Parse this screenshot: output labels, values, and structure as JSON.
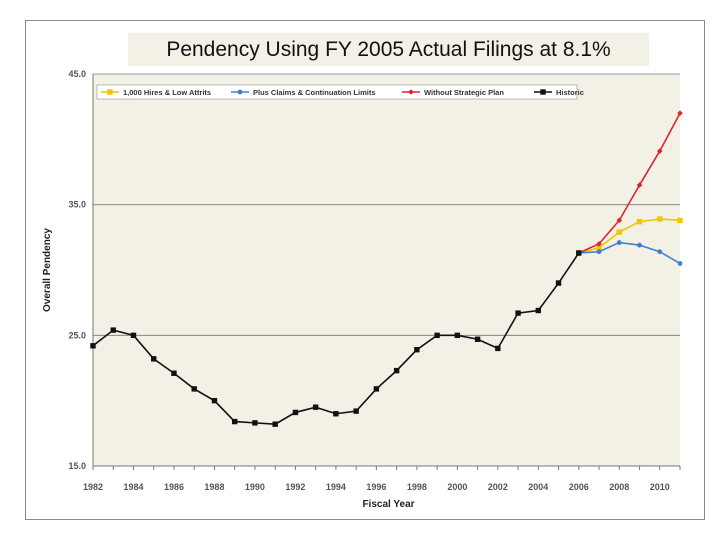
{
  "chart_data": {
    "type": "line",
    "title": "Pendency Using FY 2005 Actual Filings at 8.1%",
    "xlabel": "Fiscal Year",
    "ylabel": "Overall Pendency",
    "xlim": [
      1982,
      2011
    ],
    "ylim": [
      15,
      45
    ],
    "yticks": [
      "15.0",
      "25.0",
      "35.0",
      "45.0"
    ],
    "xticks": [
      "1982",
      "1984",
      "1986",
      "1988",
      "1990",
      "1992",
      "1994",
      "1996",
      "1998",
      "2000",
      "2002",
      "2004",
      "2006",
      "2008",
      "2010"
    ],
    "grid": "horizontal",
    "legend_position": "top",
    "series": [
      {
        "name": "1,000 Hires & Low Attrits",
        "color": "#f2c500",
        "marker": "square",
        "x": [
          2006,
          2007,
          2008,
          2009,
          2010,
          2011
        ],
        "y": [
          31.3,
          31.7,
          32.9,
          33.7,
          33.9,
          33.8
        ]
      },
      {
        "name": "Plus Claims & Continuation Limits",
        "color": "#3f7fd0",
        "marker": "circle",
        "x": [
          2006,
          2007,
          2008,
          2009,
          2010,
          2011
        ],
        "y": [
          31.3,
          31.4,
          32.1,
          31.9,
          31.4,
          30.5
        ]
      },
      {
        "name": "Without Strategic Plan",
        "color": "#d9262e",
        "marker": "diamond",
        "x": [
          2006,
          2007,
          2008,
          2009,
          2010,
          2011
        ],
        "y": [
          31.3,
          32.0,
          33.8,
          36.5,
          39.1,
          42.0
        ]
      },
      {
        "name": "Historic",
        "color": "#111111",
        "marker": "square",
        "x": [
          1982,
          1983,
          1984,
          1985,
          1986,
          1987,
          1988,
          1989,
          1990,
          1991,
          1992,
          1993,
          1994,
          1995,
          1996,
          1997,
          1998,
          1999,
          2000,
          2001,
          2002,
          2003,
          2004,
          2005,
          2006
        ],
        "y": [
          24.2,
          25.4,
          25.0,
          23.2,
          22.1,
          20.9,
          20.0,
          18.4,
          18.3,
          18.2,
          19.1,
          19.5,
          19.0,
          19.2,
          20.9,
          22.3,
          23.9,
          25.0,
          25.0,
          24.7,
          24.0,
          26.7,
          26.9,
          29.0,
          31.3
        ]
      }
    ]
  }
}
